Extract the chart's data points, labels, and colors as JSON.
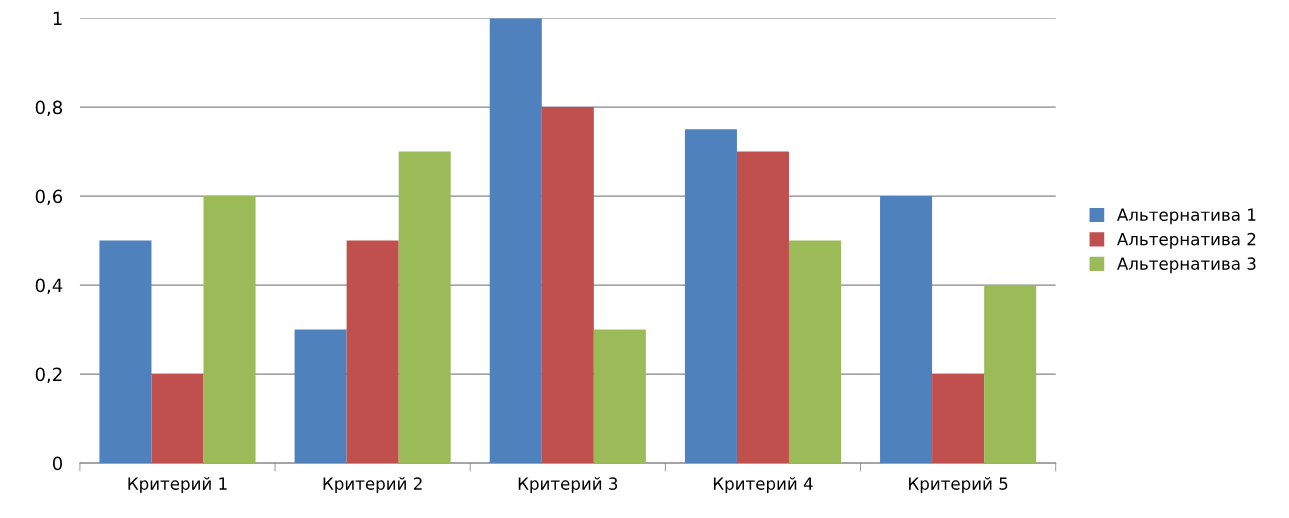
{
  "chart_data": {
    "type": "bar",
    "categories": [
      "Критерий 1",
      "Критерий 2",
      "Критерий 3",
      "Критерий 4",
      "Критерий 5"
    ],
    "series": [
      {
        "name": "Альтернатива 1",
        "color": "#4f81bd",
        "values": [
          0.5,
          0.3,
          1,
          0.75,
          0.6
        ]
      },
      {
        "name": "Альтернатива 2",
        "color": "#c0504d",
        "values": [
          0.2,
          0.5,
          0.8,
          0.7,
          0.2
        ]
      },
      {
        "name": "Альтернатива 3",
        "color": "#9bbb59",
        "values": [
          0.6,
          0.7,
          0.3,
          0.5,
          0.4
        ]
      }
    ],
    "ylim": [
      0,
      1
    ],
    "yticks": [
      0,
      {
        "value": 0.2,
        "label": "0,2"
      },
      {
        "value": 0.4,
        "label": "0,4"
      },
      {
        "value": 0.6,
        "label": "0,6"
      },
      {
        "value": 0.8,
        "label": "0,8"
      },
      1
    ],
    "grid": "y",
    "legend": "right"
  }
}
